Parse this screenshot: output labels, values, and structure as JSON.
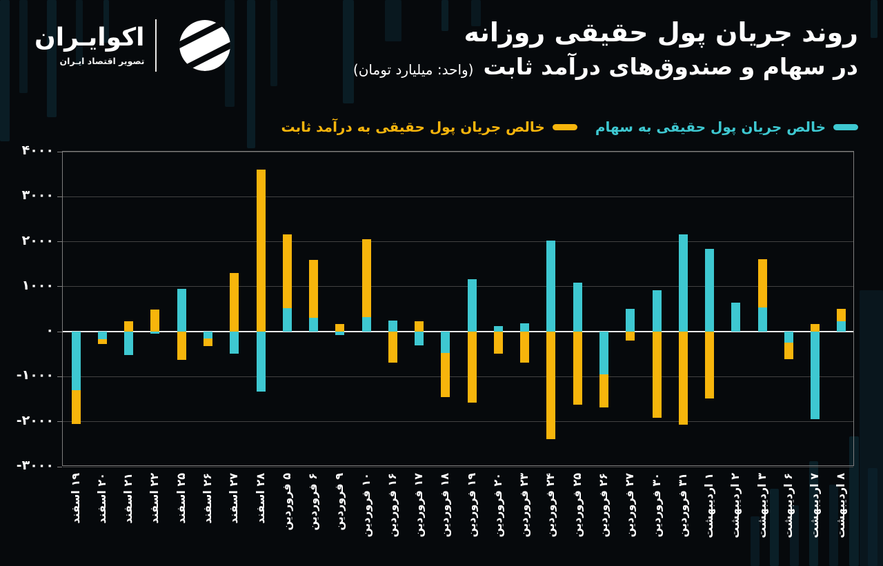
{
  "page": {
    "background": "#06090C",
    "accent_cyan": "#3EC8D1",
    "accent_yellow": "#F7B50C"
  },
  "header": {
    "logo": {
      "brand": "اکوایـران",
      "tagline": "تصویر اقتصاد ایـران"
    },
    "title_line1": "روند جریان پول حقیقی روزانه",
    "title_line2": "در سهام و صندوق‌های درآمد ثابت",
    "unit_note": "(واحد: میلیارد تومان)"
  },
  "legend": {
    "items": [
      {
        "label": "خالص جریان پول حقیقی به سهام",
        "color": "#3EC8D1"
      },
      {
        "label": "خالص جریان پول حقیقی به درآمد ثابت",
        "color": "#F7B50C"
      }
    ]
  },
  "chart_data": {
    "type": "bar",
    "stacked": true,
    "title": "روند جریان پول حقیقی روزانه در سهام و صندوق‌های درآمد ثابت",
    "unit": "میلیارد تومان",
    "grid": true,
    "legend_position": "top",
    "ylim": [
      -3000,
      4000
    ],
    "y_ticks": [
      {
        "value": 4000,
        "label": "۴۰۰۰"
      },
      {
        "value": 3000,
        "label": "۳۰۰۰"
      },
      {
        "value": 2000,
        "label": "۲۰۰۰"
      },
      {
        "value": 1000,
        "label": "۱۰۰۰"
      },
      {
        "value": 0,
        "label": "۰"
      },
      {
        "value": -1000,
        "label": "-۱۰۰۰"
      },
      {
        "value": -2000,
        "label": "-۲۰۰۰"
      },
      {
        "value": -3000,
        "label": "-۳۰۰۰"
      }
    ],
    "categories": [
      "۱۹ اسفند",
      "۲۰ اسفند",
      "۲۱ اسفند",
      "۲۲ اسفند",
      "۲۵ اسفند",
      "۲۶ اسفند",
      "۲۷ اسفند",
      "۲۸ اسفند",
      "۵ فروردین",
      "۶ فروردین",
      "۹ فروردین",
      "۱۰ فروردین",
      "۱۶ فروردین",
      "۱۷ فروردین",
      "۱۸ فروردین",
      "۱۹ فروردین",
      "۲۰ فروردین",
      "۲۳ فروردین",
      "۲۴ فروردین",
      "۲۵ فروردین",
      "۲۶ فروردین",
      "۲۷ فروردین",
      "۳۰ فروردین",
      "۳۱ فروردین",
      "۱ اردیبهشت",
      "۲ اردیبهشت",
      "۳ اردیبهشت",
      "۶ اردیبهشت",
      "۷ اردیبهشت",
      "۸ اردیبهشت"
    ],
    "series": [
      {
        "name": "خالص جریان پول حقیقی به سهام",
        "color": "#3EC8D1",
        "values": [
          -1300,
          -160,
          -520,
          -40,
          950,
          -150,
          -490,
          -1330,
          520,
          310,
          -80,
          330,
          240,
          -300,
          -470,
          1160,
          120,
          180,
          2030,
          1090,
          -950,
          510,
          920,
          2160,
          1840,
          640,
          535,
          -240,
          -1940,
          230
        ]
      },
      {
        "name": "خالص جریان پول حقیقی به درآمد ثابت",
        "color": "#F7B50C",
        "values": [
          -750,
          -120,
          230,
          500,
          -620,
          -170,
          1300,
          3600,
          1640,
          1290,
          175,
          1730,
          -680,
          225,
          -985,
          -1570,
          -485,
          -690,
          -2390,
          -1620,
          -740,
          -200,
          -1910,
          -2060,
          -1480,
          0,
          1070,
          -370,
          170,
          280
        ]
      }
    ]
  }
}
